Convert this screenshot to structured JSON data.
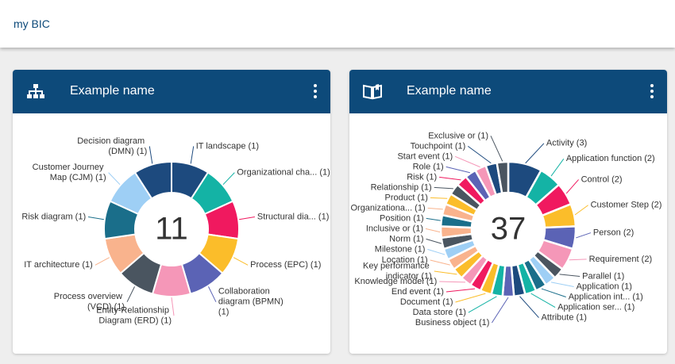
{
  "header": {
    "title": "my BIC"
  },
  "chart_data": [
    {
      "type": "pie",
      "donut": true,
      "title": "Example name",
      "total": 11,
      "categories": [
        "IT landscape (1)",
        "Organizational cha... (1)",
        "Structural dia... (1)",
        "Process (EPC) (1)",
        "Collaboration diagram (BPMN) (1)",
        "Entity-Relationship Diagram (ERD) (1)",
        "Process overview (VCD) (1)",
        "IT architecture (1)",
        "Risk diagram (1)",
        "Customer Journey Map (CJM) (1)",
        "Decision diagram (DMN) (1)"
      ],
      "values": [
        1,
        1,
        1,
        1,
        1,
        1,
        1,
        1,
        1,
        1,
        1
      ],
      "colors": [
        "#1d4a7e",
        "#14b3a5",
        "#f0195f",
        "#fbbd2a",
        "#5b63b5",
        "#f597b8",
        "#4a5560",
        "#f9b38d",
        "#1a6e8a",
        "#9ecff5",
        "#1d4a7e"
      ]
    },
    {
      "type": "pie",
      "donut": true,
      "title": "Example name",
      "total": 37,
      "categories": [
        "Activity (3)",
        "Application function (2)",
        "Control (2)",
        "Customer Step (2)",
        "Person (2)",
        "Requirement (2)",
        "Parallel (1)",
        "Application (1)",
        "Application int... (1)",
        "Application ser... (1)",
        "Attribute (1)",
        "Business object (1)",
        "Data store (1)",
        "Document (1)",
        "End event (1)",
        "Knowledge model (1)",
        "Key performance indicator (1)",
        "Location (1)",
        "Milestone (1)",
        "Norm (1)",
        "Inclusive or (1)",
        "Position (1)",
        "Organizationa... (1)",
        "Product (1)",
        "Relationship (1)",
        "Risk (1)",
        "Role (1)",
        "Start event (1)",
        "Touchpoint (1)",
        "Exclusive or (1)"
      ],
      "values": [
        3,
        2,
        2,
        2,
        2,
        2,
        1,
        1,
        1,
        1,
        1,
        1,
        1,
        1,
        1,
        1,
        1,
        1,
        1,
        1,
        1,
        1,
        1,
        1,
        1,
        1,
        1,
        1,
        1,
        1
      ],
      "colors": [
        "#1d4a7e",
        "#14b3a5",
        "#f0195f",
        "#fbbd2a",
        "#5b63b5",
        "#f597b8",
        "#4a5560",
        "#9ecff5",
        "#1a6e8a",
        "#14b3a5",
        "#1d4a7e",
        "#5b63b5",
        "#14b3a5",
        "#fbbd2a",
        "#f0195f",
        "#f597b8",
        "#fbbd2a",
        "#f9b38d",
        "#9ecff5",
        "#4a5560",
        "#f9b38d",
        "#1a6e8a",
        "#f9b38d",
        "#fbbd2a",
        "#4a5560",
        "#f0195f",
        "#5b63b5",
        "#f597b8",
        "#1d4a7e",
        "#4a5560"
      ]
    }
  ]
}
